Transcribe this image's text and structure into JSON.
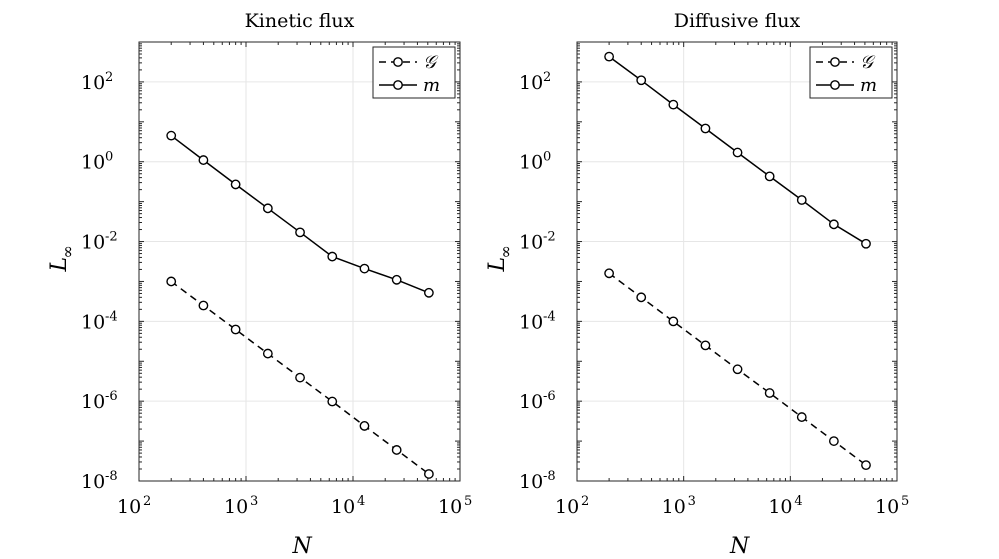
{
  "chart_data": [
    {
      "type": "line",
      "title": "Kinetic flux",
      "xlabel": "N",
      "ylabel": "L∞",
      "x_scale": "log",
      "y_scale": "log",
      "xlim": [
        100,
        100000
      ],
      "ylim": [
        1e-08,
        1000
      ],
      "grid": true,
      "legend_position": "top-right",
      "x_ticks": [
        {
          "base": "10",
          "exp": "2"
        },
        {
          "base": "10",
          "exp": "3"
        },
        {
          "base": "10",
          "exp": "4"
        },
        {
          "base": "10",
          "exp": "5"
        }
      ],
      "y_ticks": [
        {
          "base": "10",
          "exp": "-8"
        },
        {
          "base": "10",
          "exp": "-6"
        },
        {
          "base": "10",
          "exp": "-4"
        },
        {
          "base": "10",
          "exp": "-2"
        },
        {
          "base": "10",
          "exp": "0"
        },
        {
          "base": "10",
          "exp": "2"
        }
      ],
      "x": [
        200,
        400,
        800,
        1600,
        3200,
        6400,
        12800,
        25600,
        51200
      ],
      "series": [
        {
          "name": "𝒢",
          "style": "dashed",
          "marker": "circle",
          "values": [
            0.001,
            0.00025,
            6.25e-05,
            1.56e-05,
            3.9e-06,
            9.8e-07,
            2.4e-07,
            6e-08,
            1.5e-08
          ]
        },
        {
          "name": "m",
          "style": "solid",
          "marker": "circle",
          "values": [
            4.5,
            1.1,
            0.27,
            0.068,
            0.017,
            0.0042,
            0.0021,
            0.0011,
            0.00052
          ]
        }
      ]
    },
    {
      "type": "line",
      "title": "Diffusive flux",
      "xlabel": "N",
      "ylabel": "L∞",
      "x_scale": "log",
      "y_scale": "log",
      "xlim": [
        100,
        100000
      ],
      "ylim": [
        1e-08,
        1000
      ],
      "grid": true,
      "legend_position": "top-right",
      "x_ticks": [
        {
          "base": "10",
          "exp": "2"
        },
        {
          "base": "10",
          "exp": "3"
        },
        {
          "base": "10",
          "exp": "4"
        },
        {
          "base": "10",
          "exp": "5"
        }
      ],
      "y_ticks": [
        {
          "base": "10",
          "exp": "-8"
        },
        {
          "base": "10",
          "exp": "-6"
        },
        {
          "base": "10",
          "exp": "-4"
        },
        {
          "base": "10",
          "exp": "-2"
        },
        {
          "base": "10",
          "exp": "0"
        },
        {
          "base": "10",
          "exp": "2"
        }
      ],
      "x": [
        200,
        400,
        800,
        1600,
        3200,
        6400,
        12800,
        25600,
        51200
      ],
      "series": [
        {
          "name": "𝒢",
          "style": "dashed",
          "marker": "circle",
          "values": [
            0.0016,
            0.0004,
            0.0001,
            2.5e-05,
            6.3e-06,
            1.6e-06,
            4e-07,
            1e-07,
            2.5e-08
          ]
        },
        {
          "name": "m",
          "style": "solid",
          "marker": "circle",
          "values": [
            430,
            110,
            27,
            6.8,
            1.7,
            0.43,
            0.11,
            0.027,
            0.0088
          ]
        }
      ]
    }
  ]
}
